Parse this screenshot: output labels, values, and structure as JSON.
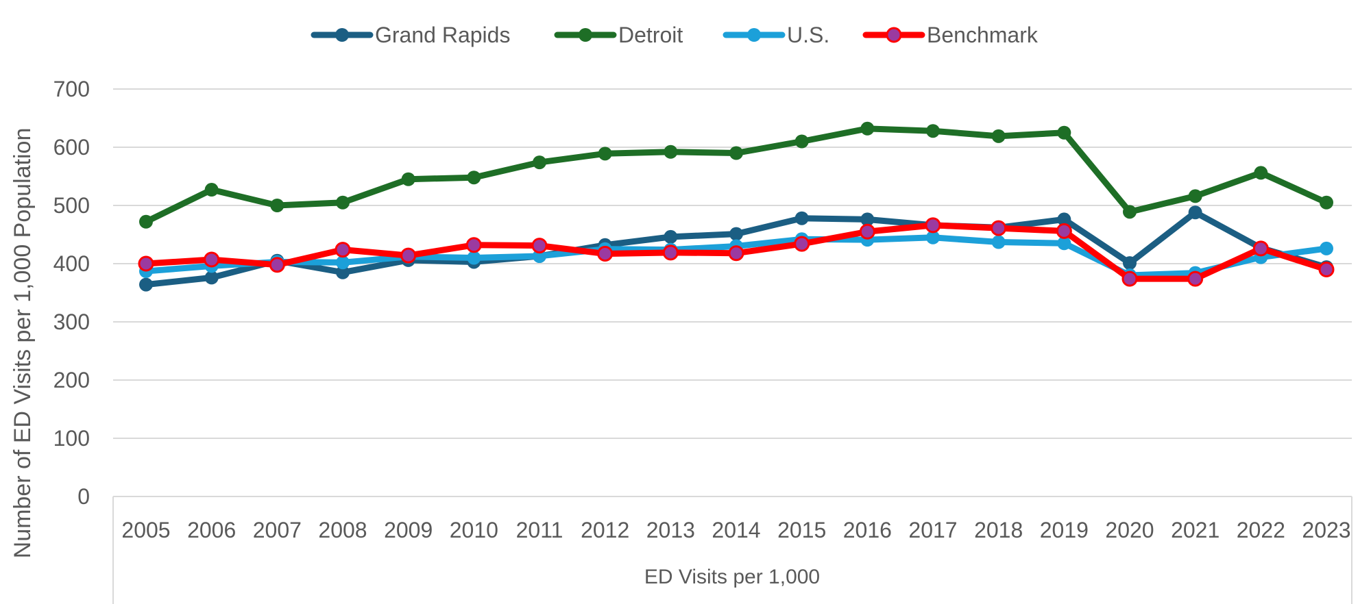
{
  "chart_data": {
    "type": "line",
    "title": "",
    "xlabel": "ED Visits per 1,000",
    "ylabel": "Number of ED Visits per 1,000 Population",
    "ylim": [
      0,
      700
    ],
    "yticks": [
      "0",
      "100",
      "200",
      "300",
      "400",
      "500",
      "600",
      "700"
    ],
    "ytick_values": [
      0,
      100,
      200,
      300,
      400,
      500,
      600,
      700
    ],
    "grid": true,
    "legend_position": "top",
    "categories": [
      "2005",
      "2006",
      "2007",
      "2008",
      "2009",
      "2010",
      "2011",
      "2012",
      "2013",
      "2014",
      "2015",
      "2016",
      "2017",
      "2018",
      "2019",
      "2020",
      "2021",
      "2022",
      "2023"
    ],
    "series": [
      {
        "name": "Grand Rapids",
        "color": "#1b5e83",
        "marker_fill": "#1b5e83",
        "values": [
          364,
          376,
          405,
          385,
          406,
          403,
          413,
          432,
          446,
          451,
          478,
          476,
          466,
          462,
          476,
          401,
          488,
          427,
          394
        ]
      },
      {
        "name": "Detroit",
        "color": "#1e6e26",
        "marker_fill": "#1e6e26",
        "values": [
          472,
          527,
          500,
          505,
          545,
          548,
          574,
          589,
          592,
          590,
          610,
          632,
          628,
          619,
          625,
          489,
          516,
          556,
          505
        ]
      },
      {
        "name": "U.S.",
        "color": "#1ca0d9",
        "marker_fill": "#1ca0d9",
        "values": [
          387,
          396,
          403,
          402,
          412,
          410,
          413,
          425,
          424,
          430,
          442,
          441,
          445,
          437,
          435,
          380,
          384,
          411,
          426
        ]
      },
      {
        "name": "Benchmark",
        "color": "#ff0000",
        "marker_fill": "#9b3aa0",
        "values": [
          400,
          407,
          398,
          424,
          414,
          432,
          431,
          417,
          419,
          418,
          434,
          455,
          466,
          461,
          456,
          374,
          374,
          426,
          390
        ]
      }
    ]
  }
}
